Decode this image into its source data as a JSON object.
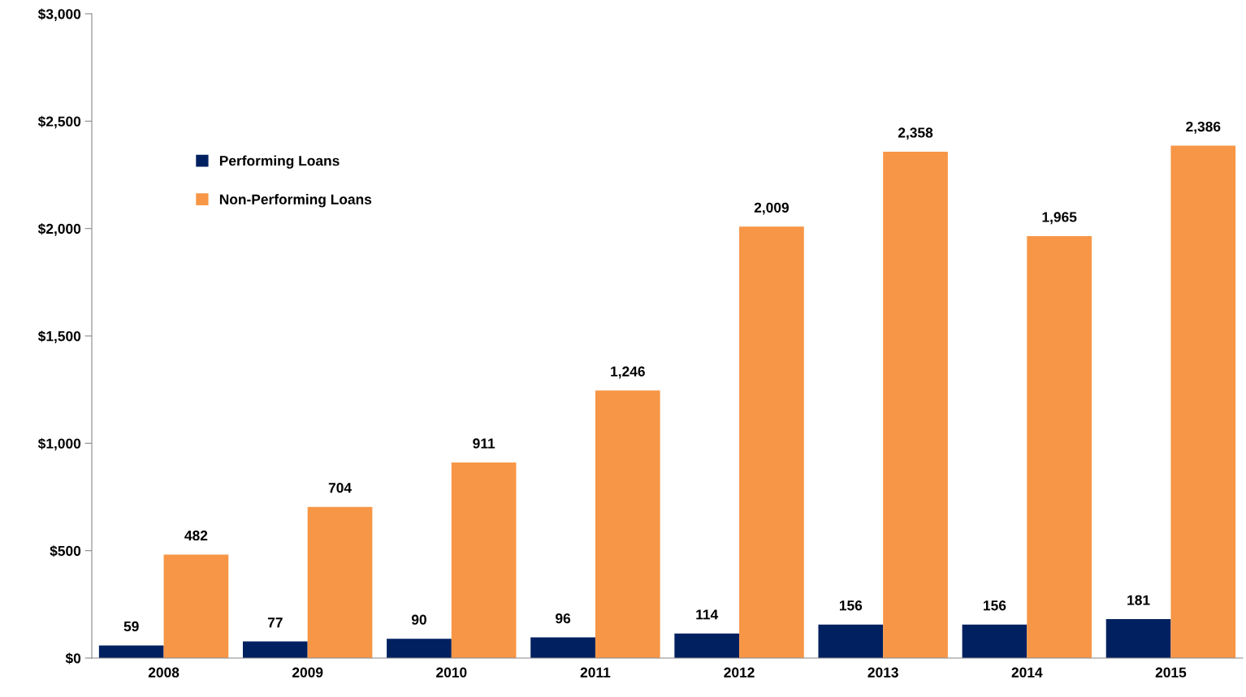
{
  "chart_data": {
    "type": "bar",
    "categories": [
      "2008",
      "2009",
      "2010",
      "2011",
      "2012",
      "2013",
      "2014",
      "2015"
    ],
    "series": [
      {
        "name": "Performing Loans",
        "color": "#002060",
        "values": [
          59,
          77,
          90,
          96,
          114,
          156,
          156,
          181
        ],
        "value_labels": [
          "59",
          "77",
          "90",
          "96",
          "114",
          "156",
          "156",
          "181"
        ]
      },
      {
        "name": "Non-Performing Loans",
        "color": "#f79646",
        "values": [
          482,
          704,
          911,
          1246,
          2009,
          2358,
          1965,
          2386
        ],
        "value_labels": [
          "482",
          "704",
          "911",
          "1,246",
          "2,009",
          "2,358",
          "1,965",
          "2,386"
        ]
      }
    ],
    "ylim": [
      0,
      3000
    ],
    "yticks": [
      {
        "value": 0,
        "label": "$0"
      },
      {
        "value": 500,
        "label": "$500"
      },
      {
        "value": 1000,
        "label": "$1,000"
      },
      {
        "value": 1500,
        "label": "$1,500"
      },
      {
        "value": 2000,
        "label": "$2,000"
      },
      {
        "value": 2500,
        "label": "$2,500"
      },
      {
        "value": 3000,
        "label": "$3,000"
      }
    ],
    "grid": false,
    "legend": "top left"
  }
}
